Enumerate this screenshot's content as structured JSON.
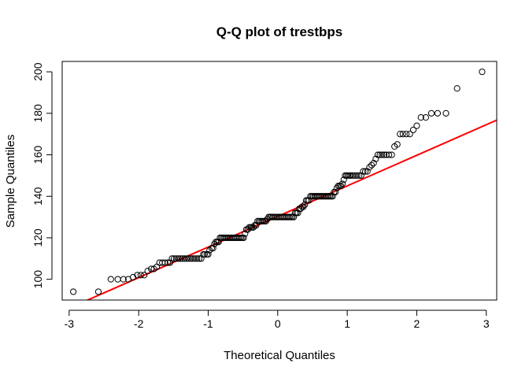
{
  "chart_data": {
    "type": "scatter",
    "title": "Q-Q plot of trestbps",
    "xlabel": "Theoretical Quantiles",
    "ylabel": "Sample Quantiles",
    "xlim": [
      -3.1,
      3.15
    ],
    "ylim": [
      90,
      205
    ],
    "x_ticks": [
      -3,
      -2,
      -1,
      0,
      1,
      2,
      3
    ],
    "y_ticks": [
      100,
      120,
      140,
      160,
      180,
      200
    ],
    "x_tick_labels": [
      "-3",
      "-2",
      "-1",
      "0",
      "1",
      "2",
      "3"
    ],
    "y_tick_labels": [
      "100",
      "120",
      "140",
      "160",
      "180",
      "200"
    ],
    "grid": false,
    "series": [
      {
        "kind": "points",
        "marker": "open-circle",
        "color": "#000000",
        "points": [
          [
            -2.94,
            94
          ],
          [
            -2.58,
            94
          ],
          [
            -2.4,
            100
          ],
          [
            -2.3,
            100
          ],
          [
            -2.22,
            100
          ],
          [
            -2.15,
            100
          ],
          [
            -2.08,
            101
          ],
          [
            -2.02,
            102
          ],
          [
            -1.97,
            102
          ],
          [
            -1.92,
            102
          ],
          [
            -1.87,
            104
          ],
          [
            -1.82,
            105
          ],
          [
            -1.78,
            105
          ],
          [
            -1.74,
            106
          ],
          [
            -1.7,
            108
          ],
          [
            -1.66,
            108
          ],
          [
            -1.62,
            108
          ],
          [
            -1.58,
            108
          ],
          [
            -1.55,
            108
          ],
          [
            -1.52,
            110
          ],
          [
            -1.49,
            110
          ],
          [
            -1.46,
            110
          ],
          [
            -1.43,
            110
          ],
          [
            -1.4,
            110
          ],
          [
            -1.37,
            110
          ],
          [
            -1.34,
            110
          ],
          [
            -1.31,
            110
          ],
          [
            -1.28,
            110
          ],
          [
            -1.25,
            110
          ],
          [
            -1.22,
            110
          ],
          [
            -1.19,
            110
          ],
          [
            -1.16,
            110
          ],
          [
            -1.13,
            110
          ],
          [
            -1.1,
            110
          ],
          [
            -1.07,
            112
          ],
          [
            -1.05,
            112
          ],
          [
            -1.02,
            112
          ],
          [
            -1.0,
            112
          ],
          [
            -0.98,
            114
          ],
          [
            -0.95,
            115
          ],
          [
            -0.93,
            115
          ],
          [
            -0.91,
            117
          ],
          [
            -0.89,
            118
          ],
          [
            -0.87,
            118
          ],
          [
            -0.85,
            118
          ],
          [
            -0.83,
            120
          ],
          [
            -0.81,
            120
          ],
          [
            -0.79,
            120
          ],
          [
            -0.77,
            120
          ],
          [
            -0.75,
            120
          ],
          [
            -0.73,
            120
          ],
          [
            -0.71,
            120
          ],
          [
            -0.69,
            120
          ],
          [
            -0.67,
            120
          ],
          [
            -0.65,
            120
          ],
          [
            -0.63,
            120
          ],
          [
            -0.61,
            120
          ],
          [
            -0.59,
            120
          ],
          [
            -0.57,
            120
          ],
          [
            -0.55,
            120
          ],
          [
            -0.53,
            120
          ],
          [
            -0.51,
            120
          ],
          [
            -0.49,
            120
          ],
          [
            -0.47,
            122
          ],
          [
            -0.45,
            124
          ],
          [
            -0.43,
            124
          ],
          [
            -0.41,
            125
          ],
          [
            -0.39,
            125
          ],
          [
            -0.37,
            125
          ],
          [
            -0.35,
            125
          ],
          [
            -0.33,
            126
          ],
          [
            -0.31,
            126
          ],
          [
            -0.29,
            128
          ],
          [
            -0.27,
            128
          ],
          [
            -0.25,
            128
          ],
          [
            -0.23,
            128
          ],
          [
            -0.21,
            128
          ],
          [
            -0.19,
            128
          ],
          [
            -0.17,
            128
          ],
          [
            -0.15,
            129
          ],
          [
            -0.13,
            130
          ],
          [
            -0.11,
            130
          ],
          [
            -0.09,
            130
          ],
          [
            -0.07,
            130
          ],
          [
            -0.05,
            130
          ],
          [
            -0.03,
            130
          ],
          [
            -0.01,
            130
          ],
          [
            0.01,
            130
          ],
          [
            0.03,
            130
          ],
          [
            0.05,
            130
          ],
          [
            0.07,
            130
          ],
          [
            0.09,
            130
          ],
          [
            0.11,
            130
          ],
          [
            0.13,
            130
          ],
          [
            0.15,
            130
          ],
          [
            0.17,
            130
          ],
          [
            0.19,
            130
          ],
          [
            0.21,
            130
          ],
          [
            0.23,
            130
          ],
          [
            0.25,
            132
          ],
          [
            0.27,
            132
          ],
          [
            0.29,
            132
          ],
          [
            0.31,
            134
          ],
          [
            0.33,
            134
          ],
          [
            0.35,
            135
          ],
          [
            0.37,
            135
          ],
          [
            0.39,
            136
          ],
          [
            0.41,
            138
          ],
          [
            0.43,
            138
          ],
          [
            0.45,
            138
          ],
          [
            0.47,
            140
          ],
          [
            0.49,
            140
          ],
          [
            0.51,
            140
          ],
          [
            0.53,
            140
          ],
          [
            0.55,
            140
          ],
          [
            0.57,
            140
          ],
          [
            0.59,
            140
          ],
          [
            0.61,
            140
          ],
          [
            0.63,
            140
          ],
          [
            0.65,
            140
          ],
          [
            0.67,
            140
          ],
          [
            0.69,
            140
          ],
          [
            0.71,
            140
          ],
          [
            0.73,
            140
          ],
          [
            0.75,
            140
          ],
          [
            0.77,
            140
          ],
          [
            0.79,
            140
          ],
          [
            0.81,
            142
          ],
          [
            0.83,
            142
          ],
          [
            0.85,
            144
          ],
          [
            0.87,
            145
          ],
          [
            0.89,
            145
          ],
          [
            0.91,
            145
          ],
          [
            0.93,
            146
          ],
          [
            0.95,
            148
          ],
          [
            0.97,
            150
          ],
          [
            0.99,
            150
          ],
          [
            1.01,
            150
          ],
          [
            1.03,
            150
          ],
          [
            1.05,
            150
          ],
          [
            1.08,
            150
          ],
          [
            1.11,
            150
          ],
          [
            1.14,
            150
          ],
          [
            1.17,
            150
          ],
          [
            1.2,
            150
          ],
          [
            1.23,
            152
          ],
          [
            1.26,
            152
          ],
          [
            1.29,
            152
          ],
          [
            1.32,
            154
          ],
          [
            1.35,
            155
          ],
          [
            1.38,
            156
          ],
          [
            1.41,
            158
          ],
          [
            1.44,
            160
          ],
          [
            1.47,
            160
          ],
          [
            1.5,
            160
          ],
          [
            1.53,
            160
          ],
          [
            1.56,
            160
          ],
          [
            1.6,
            160
          ],
          [
            1.64,
            160
          ],
          [
            1.68,
            164
          ],
          [
            1.72,
            165
          ],
          [
            1.76,
            170
          ],
          [
            1.8,
            170
          ],
          [
            1.85,
            170
          ],
          [
            1.9,
            170
          ],
          [
            1.95,
            172
          ],
          [
            2.0,
            174
          ],
          [
            2.06,
            178
          ],
          [
            2.13,
            178
          ],
          [
            2.21,
            180
          ],
          [
            2.3,
            180
          ],
          [
            2.42,
            180
          ],
          [
            2.58,
            192
          ],
          [
            2.94,
            200
          ]
        ]
      },
      {
        "kind": "line",
        "role": "reference-line",
        "color": "#ff0000",
        "x": [
          -3.1,
          3.15
        ],
        "y": [
          84.6,
          176.7
        ]
      }
    ]
  }
}
